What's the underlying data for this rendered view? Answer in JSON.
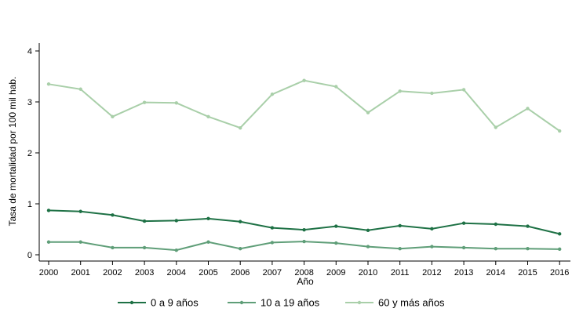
{
  "chart_data": {
    "type": "line",
    "title": "",
    "xlabel": "Año",
    "ylabel": "Tasa de mortalidad por 100 mil hab.",
    "x": [
      "2000",
      "2001",
      "2002",
      "2003",
      "2004",
      "2005",
      "2006",
      "2007",
      "2008",
      "2009",
      "2010",
      "2011",
      "2012",
      "2013",
      "2014",
      "2015",
      "2016"
    ],
    "ylim": [
      0,
      4
    ],
    "yticks": [
      "0",
      "1",
      "2",
      "3",
      "4"
    ],
    "grid": false,
    "legend_position": "bottom",
    "series": [
      {
        "name": "0 a 9 años",
        "color": "#1e7145",
        "values": [
          0.87,
          0.85,
          0.78,
          0.66,
          0.67,
          0.71,
          0.65,
          0.53,
          0.49,
          0.56,
          0.48,
          0.57,
          0.51,
          0.62,
          0.6,
          0.56,
          0.41
        ]
      },
      {
        "name": "10 a 19 años",
        "color": "#5f9e78",
        "values": [
          0.25,
          0.25,
          0.14,
          0.14,
          0.09,
          0.25,
          0.12,
          0.24,
          0.26,
          0.23,
          0.16,
          0.12,
          0.16,
          0.14,
          0.12,
          0.12,
          0.11
        ]
      },
      {
        "name": "60 y más años",
        "color": "#a9cfa9",
        "values": [
          3.35,
          3.25,
          2.71,
          2.99,
          2.98,
          2.71,
          2.49,
          3.15,
          3.42,
          3.3,
          2.79,
          3.21,
          3.17,
          3.24,
          2.5,
          2.87,
          2.43
        ]
      }
    ]
  }
}
